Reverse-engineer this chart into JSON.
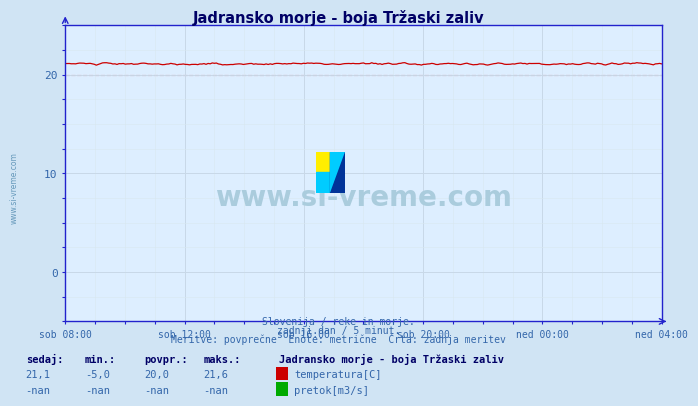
{
  "title": "Jadransko morje - boja Tržaski zaliv",
  "bg_color": "#d0e4f4",
  "plot_bg_color": "#ddeeff",
  "grid_color": "#c8d8e8",
  "grid_minor_color": "#d8e8f0",
  "line_color_temp": "#cc0000",
  "axis_color": "#2222cc",
  "title_color": "#000066",
  "text_color": "#3366aa",
  "ylim": [
    -5,
    25
  ],
  "yticks": [
    0,
    10,
    20
  ],
  "x_labels": [
    "sob 08:00",
    "sob 12:00",
    "sob 16:00",
    "sob 20:00",
    "ned 00:00",
    "ned 04:00"
  ],
  "x_positions": [
    0,
    0.2,
    0.4,
    0.6,
    0.8,
    1.0
  ],
  "temp_value": 21.1,
  "avg_value": 20.0,
  "min_value": -5.0,
  "max_value": 21.6,
  "footer_line1": "Slovenija / reke in morje.",
  "footer_line2": "zadnji dan / 5 minut.",
  "footer_line3": "Meritve: povprečne  Enote: metrične  Črta: zadnja meritev",
  "legend_title": "Jadransko morje - boja Tržaski zaliv",
  "label_sedaj": "sedaj:",
  "label_min": "min.:",
  "label_povpr": "povpr.:",
  "label_maks": "maks.:",
  "val_sedaj": "21,1",
  "val_min": "-5,0",
  "val_povpr": "20,0",
  "val_maks": "21,6",
  "val_sedaj2": "-nan",
  "val_min2": "-nan",
  "val_povpr2": "-nan",
  "val_maks2": "-nan",
  "series1_label": "temperatura[C]",
  "series2_label": "pretok[m3/s]",
  "watermark": "www.si-vreme.com",
  "watermark_color": "#aaccdd",
  "left_watermark_color": "#6699bb"
}
